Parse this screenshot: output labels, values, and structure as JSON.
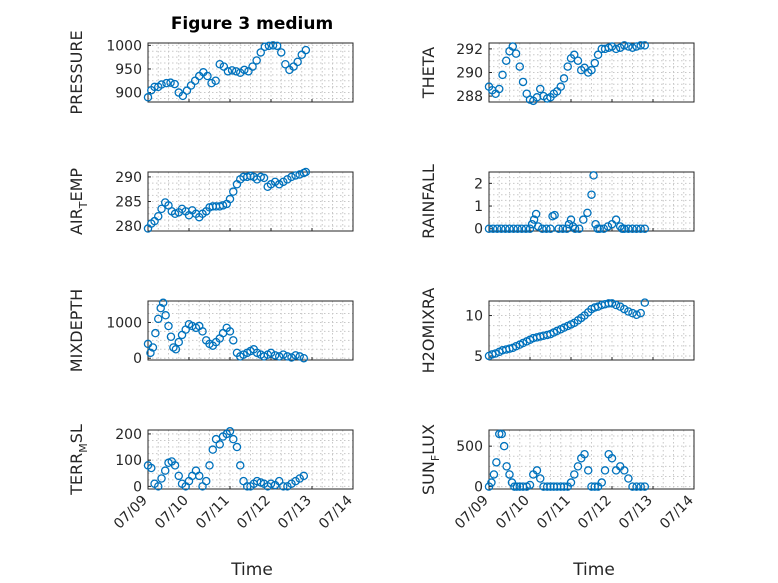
{
  "figure": {
    "title": "Figure 3 medium",
    "marker_color": "#0072BD"
  },
  "chart_data": [
    {
      "type": "scatter",
      "ylabel": "PRESSURE",
      "title": "Figure 3 medium",
      "xlim": [
        0,
        5
      ],
      "ylim": [
        880,
        1005
      ],
      "yticks": [
        900,
        950,
        1000
      ],
      "grid": true,
      "x": [
        0.0,
        0.08,
        0.16,
        0.25,
        0.33,
        0.45,
        0.55,
        0.65,
        0.75,
        0.85,
        0.95,
        1.05,
        1.15,
        1.25,
        1.35,
        1.45,
        1.55,
        1.65,
        1.75,
        1.85,
        1.95,
        2.05,
        2.15,
        2.25,
        2.35,
        2.45,
        2.55,
        2.65,
        2.75,
        2.85,
        2.95,
        3.05,
        3.15,
        3.25,
        3.35,
        3.45,
        3.55,
        3.65,
        3.75,
        3.85
      ],
      "y": [
        890,
        905,
        912,
        912,
        917,
        920,
        921,
        918,
        900,
        893,
        904,
        915,
        925,
        935,
        943,
        935,
        920,
        925,
        960,
        955,
        945,
        947,
        945,
        942,
        948,
        945,
        955,
        968,
        985,
        997,
        999,
        1000,
        999,
        985,
        960,
        948,
        955,
        965,
        980,
        990
      ]
    },
    {
      "type": "scatter",
      "ylabel": "THETA",
      "xlim": [
        0,
        5
      ],
      "ylim": [
        287.5,
        292.5
      ],
      "yticks": [
        288,
        290,
        292
      ],
      "grid": true,
      "x": [
        0.0,
        0.08,
        0.16,
        0.25,
        0.33,
        0.42,
        0.5,
        0.58,
        0.66,
        0.75,
        0.83,
        0.92,
        1.0,
        1.08,
        1.17,
        1.25,
        1.33,
        1.42,
        1.5,
        1.58,
        1.66,
        1.75,
        1.83,
        1.92,
        2.0,
        2.08,
        2.17,
        2.25,
        2.33,
        2.42,
        2.5,
        2.58,
        2.66,
        2.75,
        2.83,
        2.92,
        3.0,
        3.1,
        3.2,
        3.3,
        3.4,
        3.5,
        3.6,
        3.7,
        3.8
      ],
      "y": [
        288.8,
        288.5,
        288.2,
        288.6,
        289.8,
        291.0,
        291.8,
        292.2,
        291.6,
        290.5,
        289.2,
        288.2,
        287.7,
        287.6,
        287.9,
        288.6,
        288.0,
        287.8,
        287.9,
        288.2,
        288.4,
        288.8,
        289.5,
        290.5,
        291.2,
        291.5,
        291.0,
        290.2,
        290.4,
        290.0,
        290.2,
        290.8,
        291.5,
        292.0,
        292.0,
        292.1,
        292.2,
        292.0,
        292.1,
        292.3,
        292.2,
        292.1,
        292.2,
        292.3,
        292.3
      ]
    },
    {
      "type": "scatter",
      "ylabel": "AIR_TEMP",
      "xlim": [
        0,
        5
      ],
      "ylim": [
        279,
        291
      ],
      "yticks": [
        280,
        285,
        290
      ],
      "grid": true,
      "x": [
        0.0,
        0.08,
        0.16,
        0.25,
        0.33,
        0.42,
        0.5,
        0.58,
        0.66,
        0.75,
        0.83,
        0.92,
        1.0,
        1.08,
        1.17,
        1.25,
        1.33,
        1.42,
        1.5,
        1.58,
        1.66,
        1.75,
        1.83,
        1.92,
        2.0,
        2.08,
        2.17,
        2.25,
        2.33,
        2.42,
        2.5,
        2.58,
        2.66,
        2.75,
        2.83,
        2.92,
        3.0,
        3.1,
        3.2,
        3.3,
        3.4,
        3.5,
        3.6,
        3.7,
        3.8,
        3.85
      ],
      "y": [
        279.5,
        280.5,
        281,
        282,
        283.5,
        284.8,
        284.2,
        283,
        282.5,
        282.8,
        283.5,
        283,
        282.2,
        283.2,
        282.5,
        281.8,
        282.5,
        283,
        283.8,
        284,
        284,
        284,
        284.2,
        284.5,
        285.5,
        287,
        288.5,
        289.5,
        290,
        290,
        290.2,
        290,
        289.5,
        290,
        289.8,
        288,
        288.5,
        289,
        288.5,
        289,
        289.5,
        290,
        290.3,
        290.5,
        290.8,
        291
      ]
    },
    {
      "type": "scatter",
      "ylabel": "RAINFALL",
      "xlim": [
        0,
        5
      ],
      "ylim": [
        -0.1,
        2.5
      ],
      "yticks": [
        0,
        1,
        2
      ],
      "grid": true,
      "x": [
        0.0,
        0.1,
        0.2,
        0.3,
        0.4,
        0.5,
        0.6,
        0.7,
        0.8,
        0.9,
        1.0,
        1.05,
        1.1,
        1.15,
        1.2,
        1.3,
        1.4,
        1.5,
        1.55,
        1.6,
        1.7,
        1.8,
        1.9,
        1.95,
        2.0,
        2.05,
        2.1,
        2.2,
        2.3,
        2.4,
        2.5,
        2.55,
        2.6,
        2.65,
        2.7,
        2.8,
        2.9,
        3.0,
        3.1,
        3.2,
        3.25,
        3.3,
        3.4,
        3.5,
        3.6,
        3.7,
        3.8
      ],
      "y": [
        0,
        0,
        0,
        0,
        0,
        0,
        0,
        0,
        0,
        0,
        0,
        0.2,
        0.4,
        0.65,
        0.1,
        0,
        0,
        0,
        0.55,
        0.6,
        0,
        0,
        0,
        0.2,
        0.4,
        0.1,
        0,
        0,
        0.4,
        0.7,
        1.5,
        2.35,
        0.2,
        0,
        0,
        0,
        0.1,
        0.2,
        0.4,
        0.1,
        0,
        0,
        0,
        0,
        0,
        0,
        0
      ]
    },
    {
      "type": "scatter",
      "ylabel": "MIXDEPTH",
      "xlim": [
        0,
        5
      ],
      "ylim": [
        -50,
        1600
      ],
      "yticks": [
        0,
        1000
      ],
      "grid": true,
      "x": [
        0.0,
        0.06,
        0.12,
        0.18,
        0.25,
        0.31,
        0.37,
        0.43,
        0.5,
        0.56,
        0.62,
        0.68,
        0.75,
        0.83,
        0.92,
        1.0,
        1.08,
        1.17,
        1.25,
        1.33,
        1.42,
        1.5,
        1.58,
        1.66,
        1.75,
        1.83,
        1.92,
        2.0,
        2.08,
        2.17,
        2.25,
        2.33,
        2.42,
        2.5,
        2.58,
        2.66,
        2.75,
        2.83,
        2.92,
        3.0,
        3.1,
        3.2,
        3.3,
        3.4,
        3.5,
        3.6,
        3.7,
        3.8
      ],
      "y": [
        400,
        150,
        300,
        700,
        1100,
        1400,
        1550,
        1200,
        900,
        600,
        300,
        250,
        450,
        650,
        800,
        950,
        900,
        850,
        900,
        750,
        500,
        400,
        350,
        450,
        550,
        700,
        850,
        750,
        500,
        150,
        50,
        100,
        150,
        200,
        250,
        150,
        100,
        50,
        100,
        150,
        80,
        50,
        100,
        50,
        20,
        80,
        50,
        0
      ]
    },
    {
      "type": "scatter",
      "ylabel": "H2OMIXRA",
      "xlim": [
        0,
        5
      ],
      "ylim": [
        4.5,
        11.8
      ],
      "yticks": [
        5,
        10
      ],
      "grid": true,
      "x": [
        0.0,
        0.08,
        0.16,
        0.25,
        0.33,
        0.42,
        0.5,
        0.58,
        0.66,
        0.75,
        0.83,
        0.92,
        1.0,
        1.08,
        1.17,
        1.25,
        1.33,
        1.42,
        1.5,
        1.58,
        1.66,
        1.75,
        1.83,
        1.92,
        2.0,
        2.08,
        2.17,
        2.25,
        2.33,
        2.42,
        2.5,
        2.58,
        2.66,
        2.75,
        2.83,
        2.92,
        3.0,
        3.1,
        3.2,
        3.3,
        3.4,
        3.5,
        3.6,
        3.7,
        3.8
      ],
      "y": [
        5.0,
        5.2,
        5.3,
        5.5,
        5.7,
        5.8,
        5.9,
        6.0,
        6.2,
        6.4,
        6.6,
        6.8,
        7.0,
        7.2,
        7.3,
        7.4,
        7.5,
        7.6,
        7.7,
        7.9,
        8.1,
        8.3,
        8.5,
        8.7,
        8.9,
        9.1,
        9.4,
        9.7,
        10.0,
        10.4,
        10.8,
        11.0,
        11.1,
        11.3,
        11.4,
        11.5,
        11.5,
        11.3,
        11.1,
        10.8,
        10.5,
        10.3,
        10.1,
        10.3,
        11.6
      ]
    },
    {
      "type": "scatter",
      "ylabel": "TERR_MSL",
      "xlim": [
        0,
        5
      ],
      "ylim": [
        -10,
        215
      ],
      "yticks": [
        0,
        100,
        200
      ],
      "grid": true,
      "x": [
        0.0,
        0.08,
        0.16,
        0.25,
        0.33,
        0.42,
        0.5,
        0.58,
        0.66,
        0.75,
        0.83,
        0.92,
        1.0,
        1.08,
        1.17,
        1.25,
        1.33,
        1.42,
        1.5,
        1.58,
        1.66,
        1.75,
        1.83,
        1.92,
        2.0,
        2.08,
        2.17,
        2.25,
        2.33,
        2.42,
        2.5,
        2.58,
        2.66,
        2.75,
        2.83,
        2.92,
        3.0,
        3.1,
        3.2,
        3.3,
        3.4,
        3.5,
        3.6,
        3.7,
        3.8
      ],
      "y": [
        80,
        70,
        10,
        0,
        30,
        60,
        90,
        95,
        80,
        40,
        10,
        0,
        20,
        40,
        60,
        40,
        0,
        20,
        80,
        140,
        180,
        160,
        190,
        200,
        210,
        180,
        150,
        80,
        20,
        0,
        0,
        10,
        20,
        15,
        10,
        0,
        10,
        5,
        20,
        0,
        0,
        10,
        20,
        30,
        40
      ]
    },
    {
      "type": "scatter",
      "ylabel": "SUN_FLUX",
      "xlim": [
        0,
        5
      ],
      "ylim": [
        -30,
        700
      ],
      "yticks": [
        0,
        500
      ],
      "grid": true,
      "x": [
        0.0,
        0.06,
        0.12,
        0.18,
        0.25,
        0.31,
        0.37,
        0.43,
        0.5,
        0.56,
        0.62,
        0.68,
        0.75,
        0.83,
        0.92,
        1.0,
        1.08,
        1.17,
        1.25,
        1.33,
        1.42,
        1.5,
        1.58,
        1.66,
        1.75,
        1.83,
        1.92,
        2.0,
        2.08,
        2.17,
        2.25,
        2.33,
        2.42,
        2.5,
        2.58,
        2.66,
        2.75,
        2.83,
        2.92,
        3.0,
        3.1,
        3.2,
        3.3,
        3.4,
        3.5,
        3.6,
        3.7,
        3.8
      ],
      "y": [
        0,
        50,
        150,
        300,
        650,
        650,
        500,
        250,
        150,
        50,
        0,
        0,
        0,
        0,
        0,
        20,
        150,
        200,
        100,
        0,
        0,
        0,
        0,
        0,
        0,
        0,
        0,
        50,
        150,
        250,
        350,
        400,
        200,
        0,
        0,
        0,
        50,
        200,
        400,
        350,
        200,
        250,
        200,
        100,
        0,
        0,
        0,
        0
      ]
    }
  ],
  "axes": {
    "x_tick_labels": [
      "07/09",
      "07/10",
      "07/11",
      "07/12",
      "07/13",
      "07/14"
    ],
    "xlabel": "Time"
  }
}
